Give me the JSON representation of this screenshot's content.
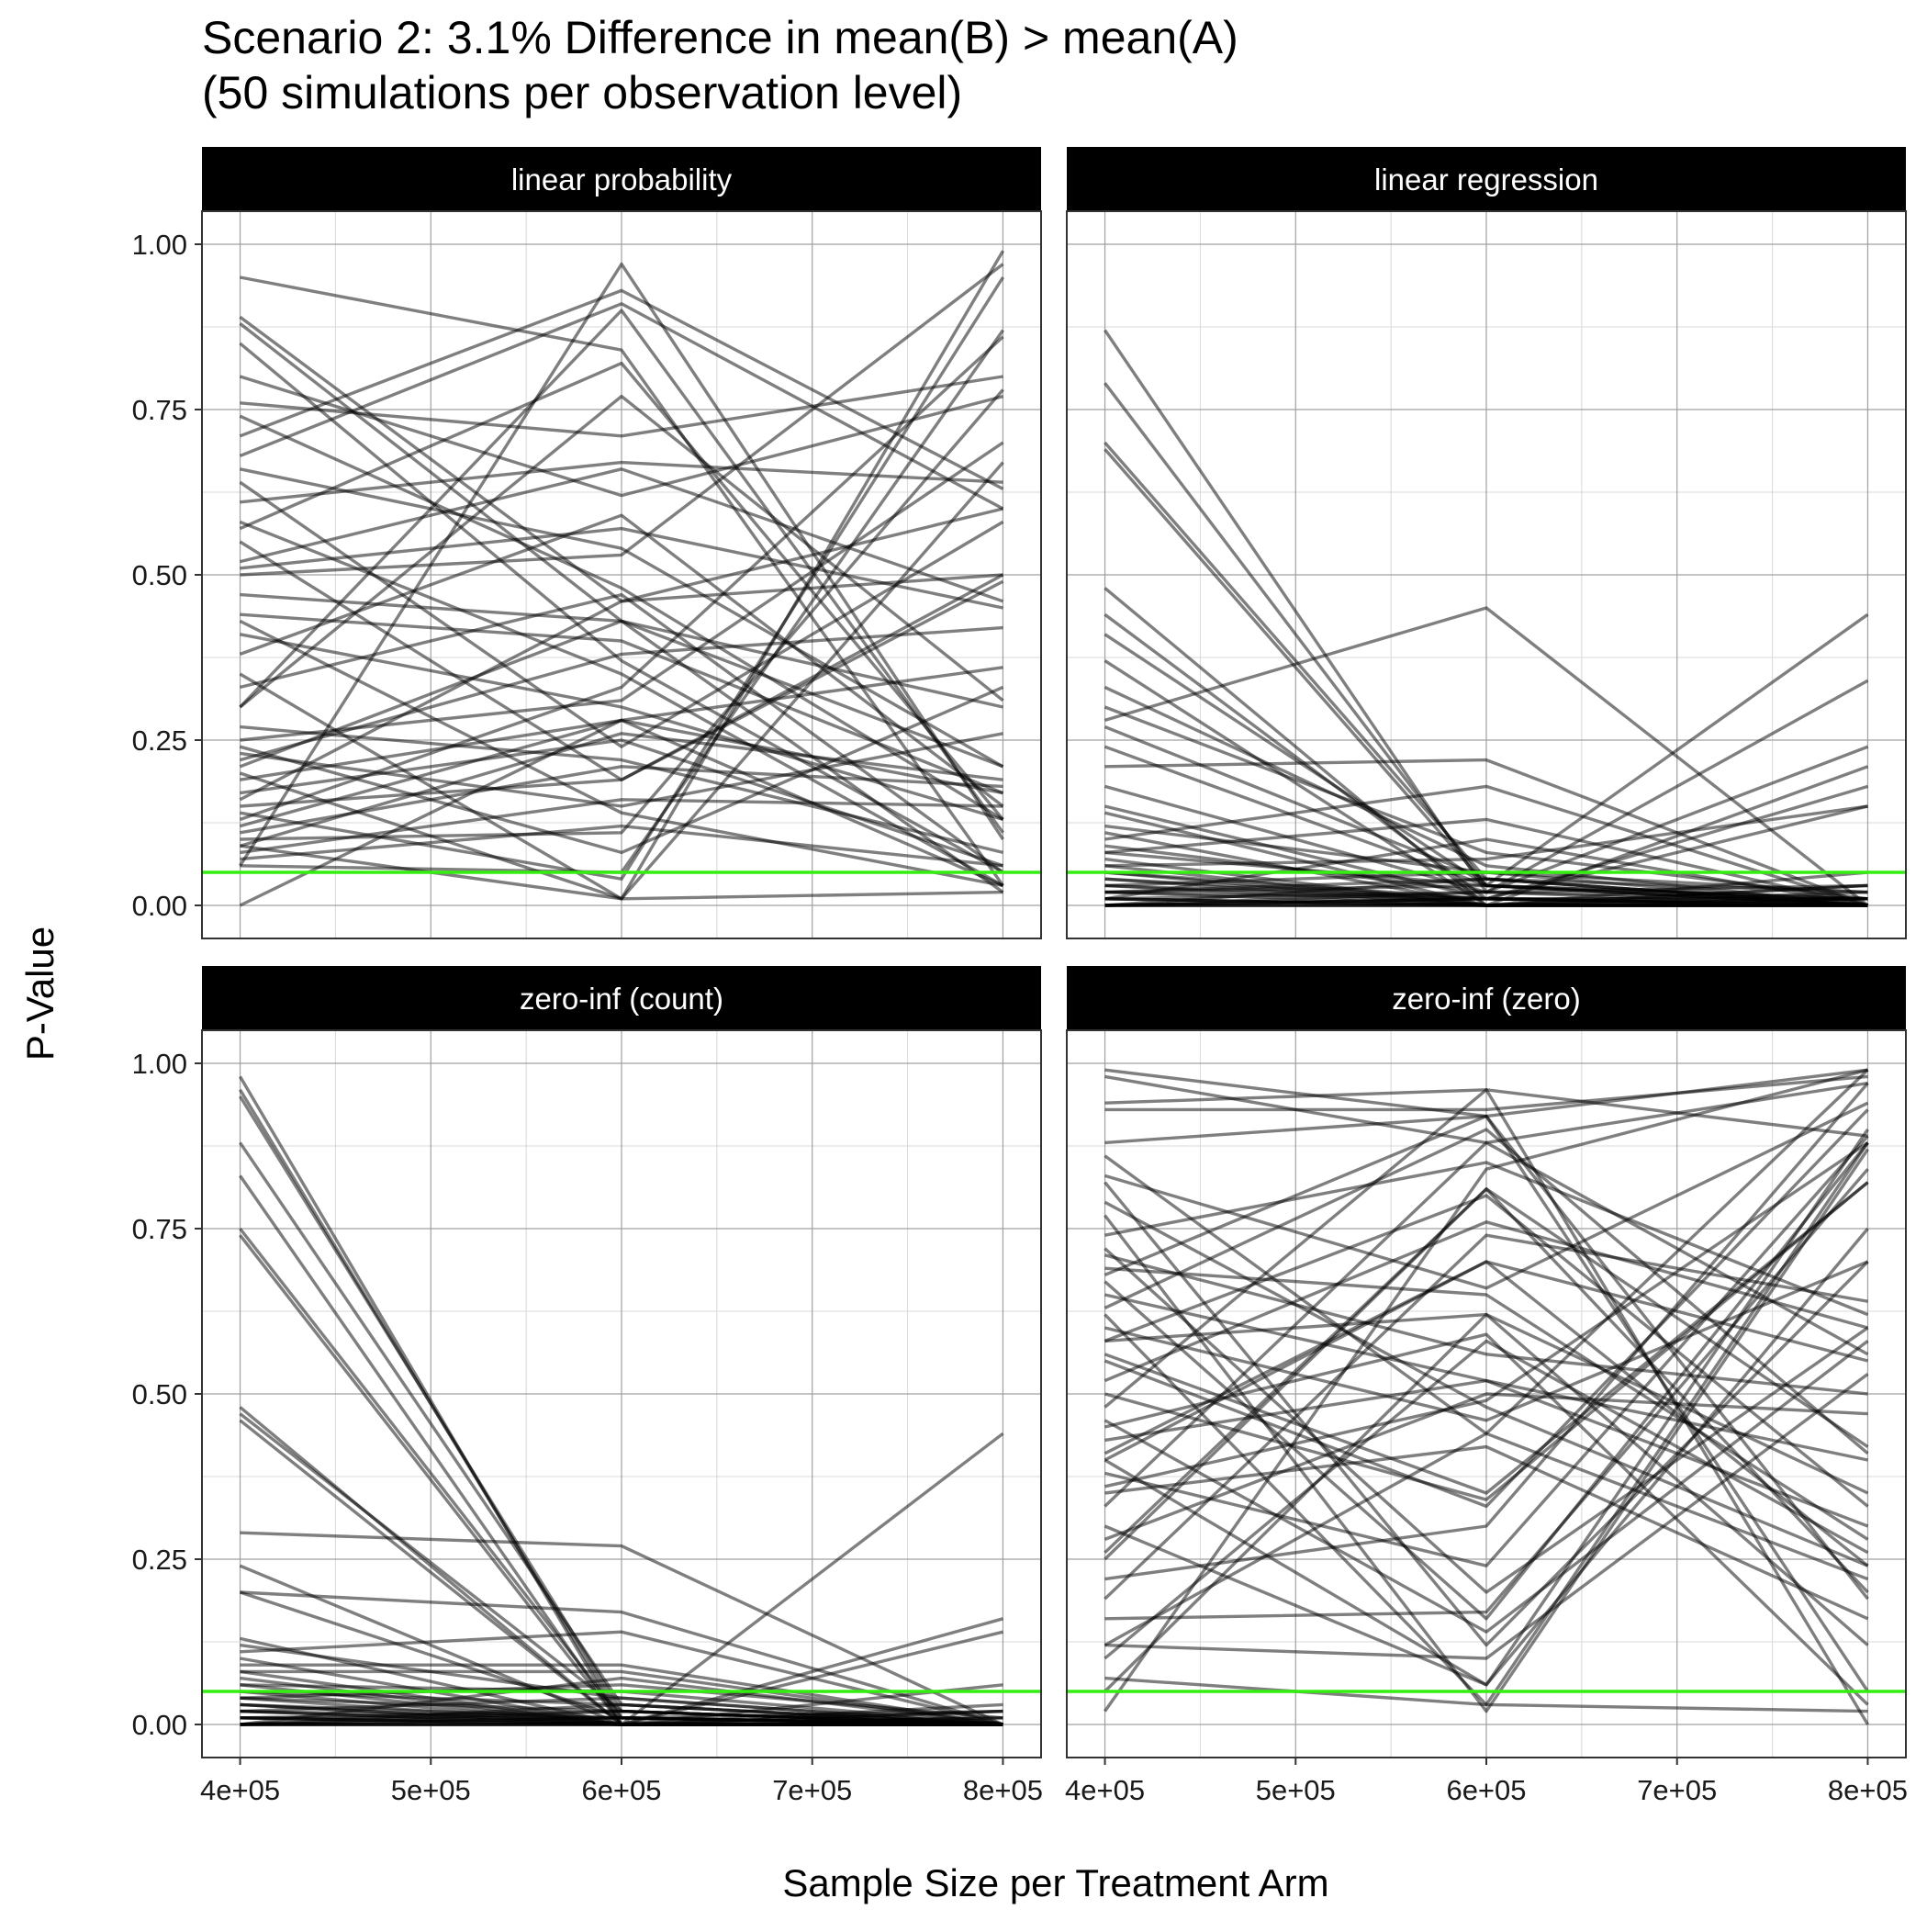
{
  "chart_data": {
    "type": "line",
    "title": "Scenario 2: 3.1% Difference in mean(B) > mean(A)",
    "subtitle": "(50 simulations per observation level)",
    "xlabel": "Sample Size per Treatment Arm",
    "ylabel": "P-Value",
    "x": [
      400000,
      600000,
      800000
    ],
    "xlim": [
      380000,
      820000
    ],
    "ylim": [
      -0.05,
      1.05
    ],
    "x_ticks": [
      400000,
      500000,
      600000,
      700000,
      800000
    ],
    "x_tick_labels": [
      "4e+05",
      "5e+05",
      "6e+05",
      "7e+05",
      "8e+05"
    ],
    "y_ticks": [
      0,
      0.25,
      0.5,
      0.75,
      1
    ],
    "y_tick_labels": [
      "0.00",
      "0.25",
      "0.50",
      "0.75",
      "1.00"
    ],
    "threshold": 0.05,
    "colors": {
      "line": "#000000",
      "threshold": "#33ee11",
      "strip_bg": "#000000",
      "strip_text": "#ffffff",
      "grid_major": "#a0a0a0",
      "grid_minor": "#d8d8d8"
    },
    "grid": true,
    "legend": "none",
    "panels": [
      {
        "label": "linear probability",
        "series": [
          [
            0.95,
            0.84,
            0.03
          ],
          [
            0.89,
            0.46,
            0.5
          ],
          [
            0.88,
            0.43,
            0.21
          ],
          [
            0.85,
            0.37,
            0.05
          ],
          [
            0.8,
            0.62,
            0.77
          ],
          [
            0.76,
            0.71,
            0.8
          ],
          [
            0.74,
            0.48,
            0.13
          ],
          [
            0.71,
            0.93,
            0.63
          ],
          [
            0.66,
            0.54,
            0.21
          ],
          [
            0.64,
            0.24,
            0.58
          ],
          [
            0.61,
            0.67,
            0.64
          ],
          [
            0.58,
            0.35,
            0.03
          ],
          [
            0.55,
            0.19,
            0.49
          ],
          [
            0.52,
            0.66,
            0.46
          ],
          [
            0.5,
            0.53,
            0.97
          ],
          [
            0.47,
            0.43,
            0.3
          ],
          [
            0.44,
            0.4,
            0.17
          ],
          [
            0.41,
            0.3,
            0.13
          ],
          [
            0.35,
            0.01,
            0.67
          ],
          [
            0.3,
            0.9,
            0.11
          ],
          [
            0.27,
            0.22,
            0.08
          ],
          [
            0.24,
            0.08,
            0.33
          ],
          [
            0.23,
            0.15,
            0.26
          ],
          [
            0.21,
            0.43,
            0.02
          ],
          [
            0.19,
            0.28,
            0.36
          ],
          [
            0.16,
            0.46,
            0.6
          ],
          [
            0.15,
            0.19,
            0.5
          ],
          [
            0.13,
            0.33,
            0.86
          ],
          [
            0.12,
            0.28,
            0.03
          ],
          [
            0.11,
            0.21,
            0.18
          ],
          [
            0.1,
            0.11,
            0.78
          ],
          [
            0.09,
            0.26,
            0.19
          ],
          [
            0.08,
            0.16,
            0.15
          ],
          [
            0.07,
            0.12,
            0.06
          ],
          [
            0.06,
            0.97,
            0.1
          ],
          [
            0.06,
            0.05,
            0.87
          ],
          [
            0.0,
            0.28,
            0.17
          ],
          [
            0.51,
            0.57,
            0.45
          ],
          [
            0.57,
            0.82,
            0.13
          ],
          [
            0.68,
            0.91,
            0.6
          ],
          [
            0.2,
            0.01,
            0.99
          ],
          [
            0.14,
            0.04,
            0.95
          ],
          [
            0.3,
            0.77,
            0.31
          ],
          [
            0.43,
            0.14,
            0.03
          ],
          [
            0.33,
            0.47,
            0.05
          ],
          [
            0.09,
            0.01,
            0.02
          ],
          [
            0.38,
            0.59,
            0.15
          ],
          [
            0.22,
            0.38,
            0.42
          ],
          [
            0.17,
            0.25,
            0.06
          ],
          [
            0.25,
            0.31,
            0.7
          ]
        ]
      },
      {
        "label": "linear regression",
        "series": [
          [
            0.87,
            0.02,
            0.01
          ],
          [
            0.79,
            0.03,
            0.0
          ],
          [
            0.7,
            0.04,
            0.02
          ],
          [
            0.69,
            0.03,
            0.0
          ],
          [
            0.48,
            0.0,
            0.03
          ],
          [
            0.44,
            0.01,
            0.0
          ],
          [
            0.41,
            0.03,
            0.01
          ],
          [
            0.37,
            0.0,
            0.0
          ],
          [
            0.33,
            0.06,
            0.0
          ],
          [
            0.28,
            0.45,
            0.0
          ],
          [
            0.24,
            0.03,
            0.44
          ],
          [
            0.21,
            0.22,
            0.0
          ],
          [
            0.18,
            0.02,
            0.34
          ],
          [
            0.15,
            0.01,
            0.01
          ],
          [
            0.14,
            0.0,
            0.03
          ],
          [
            0.11,
            0.0,
            0.05
          ],
          [
            0.1,
            0.18,
            0.0
          ],
          [
            0.09,
            0.02,
            0.24
          ],
          [
            0.08,
            0.13,
            0.0
          ],
          [
            0.07,
            0.0,
            0.21
          ],
          [
            0.06,
            0.07,
            0.15
          ],
          [
            0.05,
            0.01,
            0.18
          ],
          [
            0.04,
            0.0,
            0.01
          ],
          [
            0.03,
            0.05,
            0.02
          ],
          [
            0.03,
            0.01,
            0.01
          ],
          [
            0.02,
            0.0,
            0.0
          ],
          [
            0.02,
            0.03,
            0.01
          ],
          [
            0.01,
            0.1,
            0.0
          ],
          [
            0.01,
            0.0,
            0.0
          ],
          [
            0.01,
            0.02,
            0.0
          ],
          [
            0.0,
            0.01,
            0.0
          ],
          [
            0.0,
            0.0,
            0.01
          ],
          [
            0.0,
            0.04,
            0.0
          ],
          [
            0.0,
            0.0,
            0.02
          ],
          [
            0.0,
            0.01,
            0.0
          ],
          [
            0.01,
            0.0,
            0.0
          ],
          [
            0.02,
            0.01,
            0.0
          ],
          [
            0.03,
            0.0,
            0.01
          ],
          [
            0.0,
            0.02,
            0.03
          ],
          [
            0.01,
            0.0,
            0.0
          ],
          [
            0.27,
            0.04,
            0.0
          ],
          [
            0.3,
            0.08,
            0.01
          ],
          [
            0.12,
            0.05,
            0.0
          ],
          [
            0.06,
            0.0,
            0.0
          ],
          [
            0.0,
            0.0,
            0.0
          ],
          [
            0.04,
            0.01,
            0.0
          ],
          [
            0.08,
            0.03,
            0.0
          ],
          [
            0.0,
            0.01,
            0.15
          ],
          [
            0.02,
            0.04,
            0.0
          ],
          [
            0.05,
            0.0,
            0.0
          ]
        ]
      },
      {
        "label": "zero-inf (count)",
        "series": [
          [
            0.98,
            0.0,
            0.0
          ],
          [
            0.96,
            0.01,
            0.02
          ],
          [
            0.95,
            0.02,
            0.0
          ],
          [
            0.88,
            0.03,
            0.0
          ],
          [
            0.83,
            0.0,
            0.01
          ],
          [
            0.75,
            0.01,
            0.0
          ],
          [
            0.74,
            0.0,
            0.0
          ],
          [
            0.48,
            0.0,
            0.0
          ],
          [
            0.47,
            0.02,
            0.0
          ],
          [
            0.46,
            0.0,
            0.0
          ],
          [
            0.29,
            0.27,
            0.0
          ],
          [
            0.24,
            0.0,
            0.44
          ],
          [
            0.2,
            0.17,
            0.0
          ],
          [
            0.2,
            0.01,
            0.0
          ],
          [
            0.13,
            0.0,
            0.16
          ],
          [
            0.11,
            0.14,
            0.0
          ],
          [
            0.1,
            0.0,
            0.14
          ],
          [
            0.09,
            0.09,
            0.0
          ],
          [
            0.08,
            0.08,
            0.0
          ],
          [
            0.07,
            0.0,
            0.06
          ],
          [
            0.06,
            0.05,
            0.0
          ],
          [
            0.05,
            0.03,
            0.0
          ],
          [
            0.05,
            0.0,
            0.02
          ],
          [
            0.04,
            0.02,
            0.0
          ],
          [
            0.04,
            0.06,
            0.01
          ],
          [
            0.03,
            0.01,
            0.0
          ],
          [
            0.03,
            0.0,
            0.0
          ],
          [
            0.02,
            0.04,
            0.0
          ],
          [
            0.02,
            0.0,
            0.0
          ],
          [
            0.01,
            0.01,
            0.0
          ],
          [
            0.01,
            0.0,
            0.03
          ],
          [
            0.01,
            0.02,
            0.0
          ],
          [
            0.0,
            0.0,
            0.0
          ],
          [
            0.0,
            0.01,
            0.0
          ],
          [
            0.0,
            0.0,
            0.01
          ],
          [
            0.0,
            0.03,
            0.0
          ],
          [
            0.0,
            0.0,
            0.0
          ],
          [
            0.01,
            0.0,
            0.0
          ],
          [
            0.02,
            0.01,
            0.0
          ],
          [
            0.0,
            0.02,
            0.0
          ],
          [
            0.06,
            0.0,
            0.0
          ],
          [
            0.08,
            0.0,
            0.0
          ],
          [
            0.12,
            0.04,
            0.0
          ],
          [
            0.03,
            0.0,
            0.02
          ],
          [
            0.0,
            0.07,
            0.0
          ],
          [
            0.01,
            0.0,
            0.0
          ],
          [
            0.04,
            0.0,
            0.0
          ],
          [
            0.0,
            0.0,
            0.0
          ],
          [
            0.02,
            0.0,
            0.0
          ],
          [
            0.0,
            0.01,
            0.0
          ]
        ]
      },
      {
        "label": "zero-inf (zero)",
        "series": [
          [
            0.99,
            0.92,
            0.05
          ],
          [
            0.98,
            0.88,
            0.97
          ],
          [
            0.94,
            0.96,
            0.89
          ],
          [
            0.93,
            0.93,
            0.98
          ],
          [
            0.88,
            0.92,
            0.99
          ],
          [
            0.83,
            0.66,
            0.94
          ],
          [
            0.82,
            0.12,
            0.7
          ],
          [
            0.79,
            0.48,
            0.24
          ],
          [
            0.77,
            0.02,
            0.87
          ],
          [
            0.74,
            0.85,
            0.62
          ],
          [
            0.71,
            0.56,
            0.5
          ],
          [
            0.69,
            0.65,
            0.28
          ],
          [
            0.67,
            0.16,
            0.88
          ],
          [
            0.65,
            0.52,
            0.3
          ],
          [
            0.63,
            0.9,
            0.41
          ],
          [
            0.6,
            0.46,
            0.7
          ],
          [
            0.58,
            0.62,
            0.35
          ],
          [
            0.55,
            0.33,
            0.93
          ],
          [
            0.52,
            0.76,
            0.6
          ],
          [
            0.5,
            0.34,
            0.82
          ],
          [
            0.48,
            0.96,
            0.0
          ],
          [
            0.46,
            0.14,
            0.58
          ],
          [
            0.43,
            0.52,
            0.4
          ],
          [
            0.4,
            0.7,
            0.24
          ],
          [
            0.38,
            0.24,
            0.89
          ],
          [
            0.35,
            0.42,
            0.16
          ],
          [
            0.33,
            0.88,
            0.56
          ],
          [
            0.3,
            0.06,
            0.9
          ],
          [
            0.28,
            0.5,
            0.47
          ],
          [
            0.25,
            0.81,
            0.2
          ],
          [
            0.22,
            0.3,
            0.97
          ],
          [
            0.19,
            0.74,
            0.64
          ],
          [
            0.16,
            0.17,
            0.84
          ],
          [
            0.12,
            0.1,
            0.53
          ],
          [
            0.1,
            0.58,
            0.26
          ],
          [
            0.07,
            0.03,
            0.88
          ],
          [
            0.05,
            0.62,
            0.12
          ],
          [
            0.02,
            0.84,
            0.99
          ],
          [
            0.62,
            0.03,
            0.02
          ],
          [
            0.41,
            0.7,
            0.55
          ],
          [
            0.56,
            0.35,
            0.82
          ],
          [
            0.45,
            0.59,
            0.03
          ],
          [
            0.68,
            0.92,
            0.19
          ],
          [
            0.36,
            0.49,
            0.88
          ],
          [
            0.26,
            0.81,
            0.42
          ],
          [
            0.72,
            0.2,
            0.6
          ],
          [
            0.58,
            0.8,
            0.33
          ],
          [
            0.12,
            0.44,
            0.99
          ],
          [
            0.4,
            0.06,
            0.75
          ],
          [
            0.86,
            0.44,
            0.22
          ]
        ]
      }
    ]
  }
}
